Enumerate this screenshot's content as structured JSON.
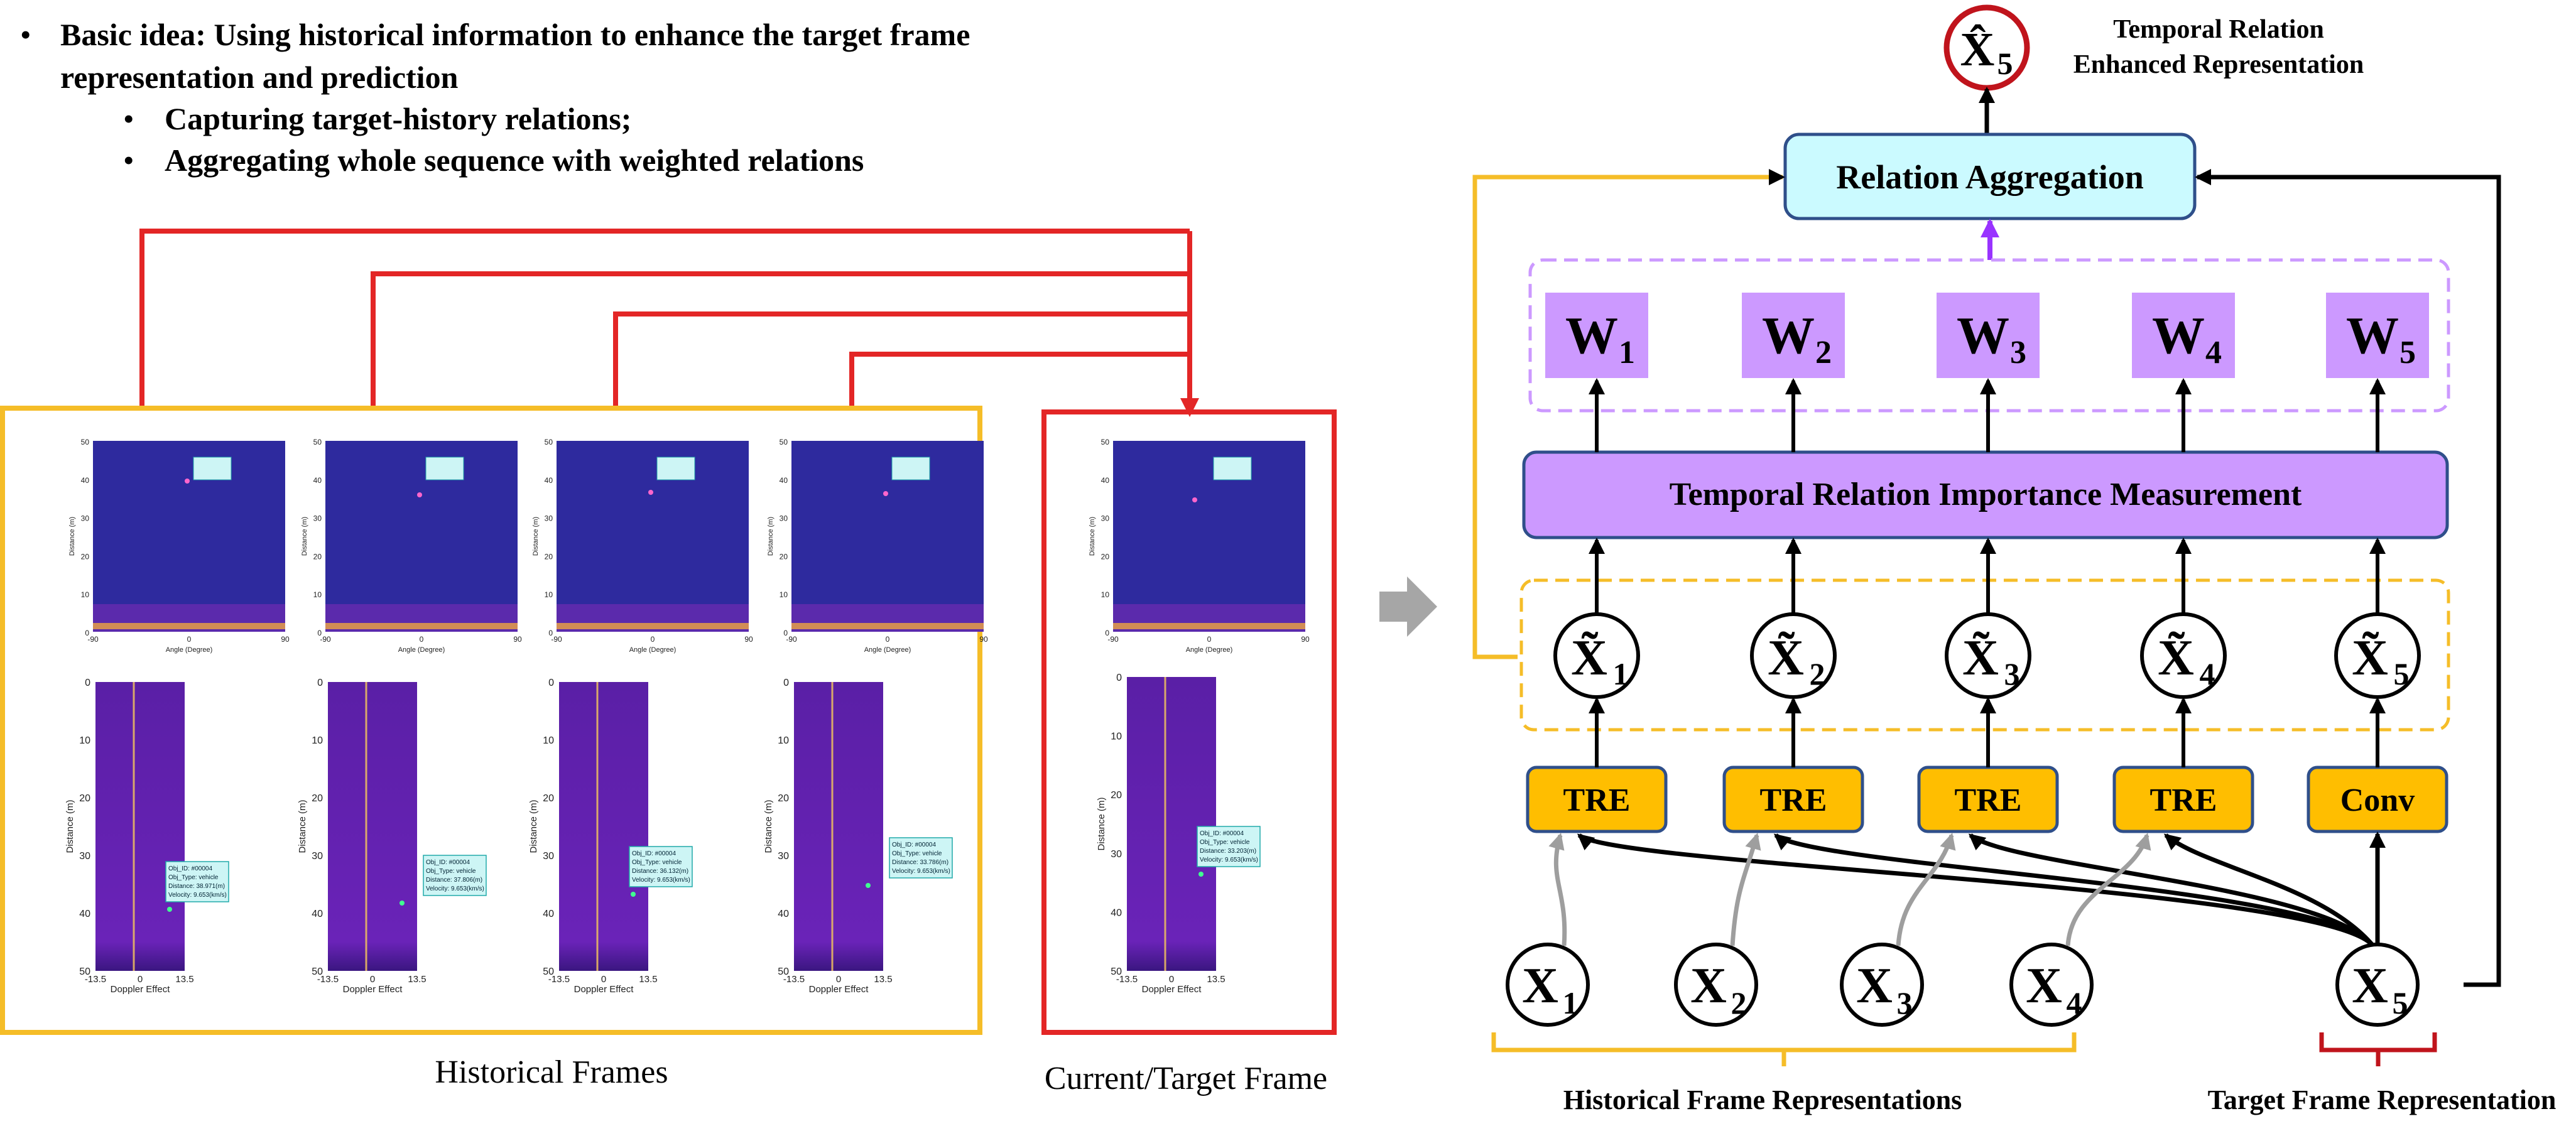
{
  "bullets": {
    "main": "Basic idea: Using historical information to enhance the target frame",
    "main_cont": "representation and prediction",
    "sub": [
      "Capturing target-history relations;",
      "Aggregating whole sequence with weighted relations"
    ]
  },
  "left_panel": {
    "historical_label": "Historical Frames",
    "target_label": "Current/Target Frame",
    "range_angle": {
      "y_ticks": [
        "50",
        "40",
        "30",
        "20",
        "10",
        "0"
      ],
      "x_ticks": [
        "-90",
        "0",
        "90"
      ],
      "y_label": "Distance (m)",
      "x_label": "Angle (Degree)"
    },
    "range_doppler": {
      "y_ticks": [
        "0",
        "10",
        "20",
        "30",
        "40",
        "50"
      ],
      "x_ticks": [
        "-13.5",
        "0",
        "13.5"
      ],
      "y_label": "Distance (m)",
      "x_label": "Doppler Effect"
    },
    "frames": [
      {
        "id": "h1",
        "note": [
          "Obj_ID: #00004",
          "Obj_Type: vehicle",
          "Distance: 38.971(m)",
          "Velocity: 9.653(km/s)"
        ]
      },
      {
        "id": "h2",
        "note": [
          "Obj_ID: #00004",
          "Obj_Type: vehicle",
          "Distance: 37.806(m)",
          "Velocity: 9.653(km/s)"
        ]
      },
      {
        "id": "h3",
        "note": [
          "Obj_ID: #00004",
          "Obj_Type: vehicle",
          "Distance: 36.132(m)",
          "Velocity: 9.653(km/s)"
        ]
      },
      {
        "id": "h4",
        "note": [
          "Obj_ID: #00004",
          "Obj_Type: vehicle",
          "Distance: 33.786(m)",
          "Velocity: 9.653(km/s)"
        ]
      },
      {
        "id": "t5",
        "note": [
          "Obj_ID: #00004",
          "Obj_Type: vehicle",
          "Distance: 33.203(m)",
          "Velocity: 9.653(km/s)"
        ]
      }
    ]
  },
  "diagram": {
    "output_node": "X̂",
    "output_sub": "5",
    "output_caption_l1": "Temporal Relation",
    "output_caption_l2": "Enhanced Representation",
    "aggregation": "Relation Aggregation",
    "measurement": "Temporal Relation Importance Measurement",
    "weights": [
      {
        "base": "W",
        "sub": "1"
      },
      {
        "base": "W",
        "sub": "2"
      },
      {
        "base": "W",
        "sub": "3"
      },
      {
        "base": "W",
        "sub": "4"
      },
      {
        "base": "W",
        "sub": "5"
      }
    ],
    "enhanced": [
      {
        "base": "X̃",
        "sub": "1"
      },
      {
        "base": "X̃",
        "sub": "2"
      },
      {
        "base": "X̃",
        "sub": "3"
      },
      {
        "base": "X̃",
        "sub": "4"
      },
      {
        "base": "X̃",
        "sub": "5"
      }
    ],
    "modules": [
      "TRE",
      "TRE",
      "TRE",
      "TRE",
      "Conv"
    ],
    "inputs": [
      {
        "base": "X",
        "sub": "1"
      },
      {
        "base": "X",
        "sub": "2"
      },
      {
        "base": "X",
        "sub": "3"
      },
      {
        "base": "X",
        "sub": "4"
      },
      {
        "base": "X",
        "sub": "5"
      }
    ],
    "historical_caption": "Historical Frame Representations",
    "target_caption": "Target Frame Representation",
    "colors": {
      "yellow": "#f5bd28",
      "red": "#e32626",
      "darkred": "#c0141c",
      "aggregation_fill": "#cbfaff",
      "module_fill": "#ffbe00",
      "purple_fill": "#cc99ff",
      "arrow_purple": "#9933ff",
      "panel_blue": "#2e2a9e"
    }
  }
}
